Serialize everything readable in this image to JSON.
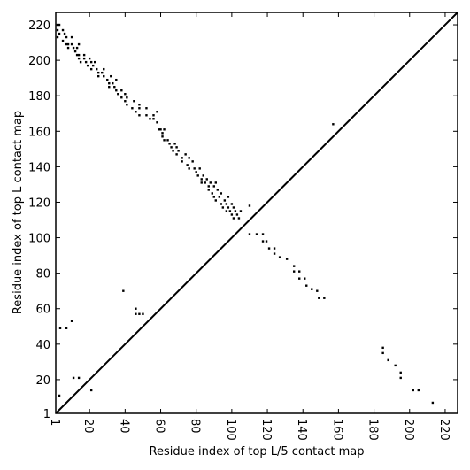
{
  "chart_data": {
    "type": "scatter",
    "xlabel": "Residue index of top L/5 contact map",
    "ylabel": "Residue index of top L contact map",
    "xlim": [
      1,
      227
    ],
    "ylim": [
      1,
      227
    ],
    "xticks": [
      1,
      20,
      40,
      60,
      80,
      100,
      120,
      140,
      160,
      180,
      200,
      220
    ],
    "yticks": [
      1,
      20,
      40,
      60,
      80,
      100,
      120,
      140,
      160,
      180,
      200,
      220
    ],
    "diagonal": true,
    "series": [
      {
        "color": "#000000",
        "x": [
          3,
          3.5,
          7,
          10,
          11,
          14,
          21,
          39,
          46,
          46,
          48,
          50,
          110,
          110,
          114,
          117.5,
          117.5,
          119.5,
          121,
          124,
          124,
          127,
          131,
          135,
          135,
          138,
          138,
          141,
          142,
          145,
          148,
          149,
          152,
          157,
          185,
          185,
          188,
          192,
          195,
          195,
          202,
          205,
          213
        ],
        "values": [
          11,
          49,
          49,
          53,
          21,
          21,
          14,
          70,
          60,
          57,
          57,
          57,
          118,
          102,
          102,
          102,
          98,
          98,
          94,
          94,
          91,
          89,
          88,
          84,
          81,
          81,
          77,
          77,
          73,
          71,
          70,
          66,
          66,
          164,
          38,
          35,
          31,
          28,
          24,
          21,
          14,
          14,
          7
        ]
      },
      {
        "color": "#000000",
        "x": [
          2,
          3,
          2,
          3,
          2,
          5,
          6,
          7,
          5,
          7,
          8,
          8,
          10,
          10,
          11,
          12,
          13,
          14,
          13,
          14,
          14,
          15,
          17,
          17,
          18,
          19,
          20,
          21,
          21,
          22,
          23,
          24,
          25,
          25,
          27,
          28,
          28,
          30,
          31,
          31,
          32,
          33,
          34,
          35,
          35,
          36,
          38,
          38,
          40,
          40,
          41,
          41,
          44,
          45,
          46,
          48,
          48,
          48,
          52,
          52,
          54,
          56,
          56,
          58,
          58,
          59,
          60,
          61,
          61,
          62,
          62,
          64,
          65,
          66,
          67,
          68,
          69,
          69,
          70,
          72,
          72,
          74,
          75,
          76,
          76,
          78,
          79,
          80,
          81,
          82,
          83,
          83,
          84,
          85,
          86,
          87,
          87,
          88,
          89,
          90,
          90,
          91,
          91,
          92,
          93,
          94,
          94,
          95,
          96,
          97,
          97,
          98,
          98,
          99,
          100,
          100,
          101,
          101,
          102,
          103,
          104,
          105
        ],
        "values": [
          220,
          220,
          217,
          215,
          213,
          217,
          215,
          213,
          211,
          209,
          209,
          207,
          213,
          209,
          207,
          205,
          207,
          209,
          203,
          203,
          201,
          199,
          203,
          201,
          199,
          197,
          201,
          199,
          195,
          197,
          199,
          195,
          193,
          191,
          193,
          191,
          195,
          189,
          187,
          185,
          191,
          187,
          185,
          183,
          189,
          181,
          183,
          179,
          181,
          177,
          179,
          175,
          173,
          177,
          171,
          175,
          173,
          169,
          173,
          169,
          167,
          169,
          167,
          165,
          171,
          161,
          161,
          159,
          157,
          155,
          161,
          155,
          153,
          151,
          149,
          153,
          151,
          147,
          149,
          145,
          143,
          147,
          141,
          145,
          139,
          143,
          139,
          137,
          135,
          139,
          133,
          131,
          135,
          131,
          133,
          129,
          127,
          131,
          125,
          129,
          123,
          131,
          121,
          127,
          123,
          119,
          125,
          117,
          121,
          119,
          115,
          123,
          117,
          115,
          113,
          119,
          117,
          111,
          115,
          113,
          111,
          115
        ]
      }
    ]
  }
}
